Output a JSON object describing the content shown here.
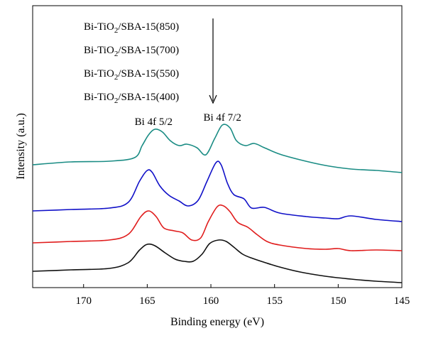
{
  "chart_data": {
    "type": "line",
    "xlabel": "Binding energy (eV)",
    "ylabel": "Intensity (a.u.)",
    "x_reversed": true,
    "xlim": [
      174,
      145
    ],
    "y_ticks_shown": false,
    "grid": false,
    "x_ticks": [
      170,
      165,
      160,
      155,
      150,
      145
    ],
    "legend": {
      "placement": "top-center",
      "arrow": "down",
      "entries": [
        {
          "prefix": "Bi-TiO",
          "sub": "2",
          "suffix": "/SBA-15(850)"
        },
        {
          "prefix": "Bi-TiO",
          "sub": "2",
          "suffix": "/SBA-15(700)"
        },
        {
          "prefix": "Bi-TiO",
          "sub": "2",
          "suffix": "/SBA-15(550)"
        },
        {
          "prefix": "Bi-TiO",
          "sub": "2",
          "suffix": "/SBA-15(400)"
        }
      ]
    },
    "annotations": [
      {
        "text": "Bi 4f 5/2",
        "x": 164.5
      },
      {
        "text": "Bi 4f 7/2",
        "x": 159.1
      }
    ],
    "series": [
      {
        "color": "#1a8c84",
        "values": [
          [
            174,
            232
          ],
          [
            171,
            228
          ],
          [
            168,
            227
          ],
          [
            166,
            222
          ],
          [
            165.4,
            205
          ],
          [
            164.9,
            190
          ],
          [
            164.4,
            182
          ],
          [
            163.8,
            186
          ],
          [
            163.2,
            198
          ],
          [
            162.5,
            205
          ],
          [
            161.9,
            203
          ],
          [
            161.1,
            208
          ],
          [
            160.4,
            218
          ],
          [
            159.7,
            195
          ],
          [
            159.1,
            176
          ],
          [
            158.5,
            180
          ],
          [
            158,
            198
          ],
          [
            157.3,
            205
          ],
          [
            156.6,
            202
          ],
          [
            155.8,
            208
          ],
          [
            154.6,
            217
          ],
          [
            153,
            225
          ],
          [
            151,
            233
          ],
          [
            149,
            238
          ],
          [
            147,
            240
          ],
          [
            145,
            243
          ]
        ]
      },
      {
        "color": "#1010c8",
        "values": [
          [
            174,
            297
          ],
          [
            171,
            295
          ],
          [
            168,
            293
          ],
          [
            166.5,
            285
          ],
          [
            165.6,
            255
          ],
          [
            165,
            240
          ],
          [
            164.6,
            243
          ],
          [
            164,
            262
          ],
          [
            163.3,
            275
          ],
          [
            162.5,
            283
          ],
          [
            161.8,
            290
          ],
          [
            161,
            282
          ],
          [
            160.3,
            255
          ],
          [
            159.6,
            229
          ],
          [
            159.2,
            232
          ],
          [
            158.7,
            258
          ],
          [
            158.2,
            274
          ],
          [
            157.4,
            280
          ],
          [
            156.8,
            293
          ],
          [
            155.8,
            292
          ],
          [
            154.6,
            300
          ],
          [
            152.5,
            305
          ],
          [
            151,
            307
          ],
          [
            150,
            308
          ],
          [
            149,
            304
          ],
          [
            147,
            309
          ],
          [
            145,
            312
          ]
        ]
      },
      {
        "color": "#e01c1c",
        "values": [
          [
            174,
            342
          ],
          [
            171,
            340
          ],
          [
            168,
            338
          ],
          [
            166.5,
            330
          ],
          [
            165.5,
            305
          ],
          [
            164.9,
            297
          ],
          [
            164.3,
            305
          ],
          [
            163.7,
            321
          ],
          [
            162.9,
            325
          ],
          [
            162.2,
            328
          ],
          [
            161.5,
            338
          ],
          [
            160.8,
            335
          ],
          [
            160.2,
            312
          ],
          [
            159.5,
            291
          ],
          [
            159,
            290
          ],
          [
            158.5,
            298
          ],
          [
            157.9,
            313
          ],
          [
            157.1,
            320
          ],
          [
            156.4,
            330
          ],
          [
            155.6,
            340
          ],
          [
            154.6,
            345
          ],
          [
            152.5,
            350
          ],
          [
            151,
            351
          ],
          [
            150,
            350
          ],
          [
            149,
            353
          ],
          [
            147,
            352
          ],
          [
            145,
            353
          ]
        ]
      },
      {
        "color": "#101010",
        "values": [
          [
            174,
            382
          ],
          [
            171,
            380
          ],
          [
            168,
            378
          ],
          [
            166.5,
            370
          ],
          [
            165.6,
            352
          ],
          [
            165,
            344
          ],
          [
            164.4,
            346
          ],
          [
            163.6,
            356
          ],
          [
            162.8,
            365
          ],
          [
            162.1,
            368
          ],
          [
            161.4,
            368
          ],
          [
            160.7,
            358
          ],
          [
            160.1,
            343
          ],
          [
            159.4,
            338
          ],
          [
            158.8,
            340
          ],
          [
            158.2,
            348
          ],
          [
            157.5,
            358
          ],
          [
            156.7,
            364
          ],
          [
            155.7,
            370
          ],
          [
            154.6,
            376
          ],
          [
            153,
            383
          ],
          [
            151,
            389
          ],
          [
            149,
            393
          ],
          [
            147,
            396
          ],
          [
            145,
            398
          ]
        ]
      }
    ]
  }
}
